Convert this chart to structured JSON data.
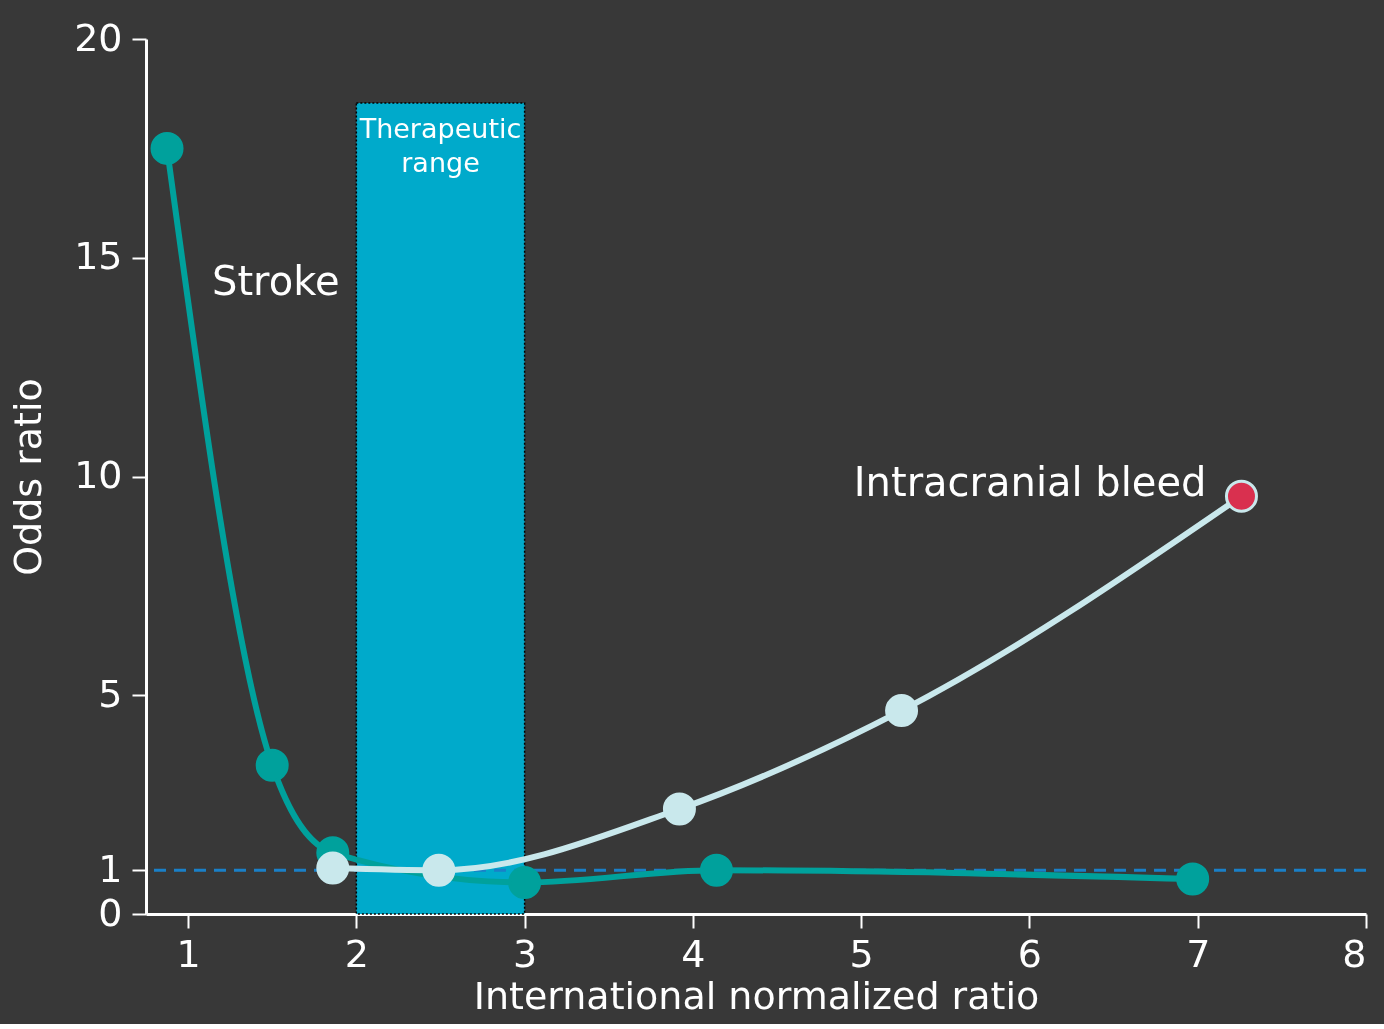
{
  "chart_data": {
    "type": "line",
    "xlabel": "International normalized ratio",
    "ylabel": "Odds ratio",
    "xlim": [
      0.75,
      8
    ],
    "xticks": [
      1,
      2,
      3,
      4,
      5,
      6,
      7,
      8
    ],
    "ylim": [
      0,
      20
    ],
    "yticks": [
      0,
      1,
      5,
      10,
      15,
      20
    ],
    "grid": false,
    "marker": "circle",
    "line_style": "solid",
    "series": [
      {
        "name": "Stroke",
        "color": "#00a19c",
        "x": [
          0.875,
          1.5,
          1.86,
          3.0,
          4.14,
          6.97
        ],
        "values": [
          17.5,
          3.4,
          1.4,
          0.72,
          1.0,
          0.8
        ]
      },
      {
        "name": "Intracranial bleed",
        "color": "#c9e8ec",
        "x": [
          1.86,
          2.49,
          3.92,
          5.24,
          7.26
        ],
        "values": [
          1.05,
          1.0,
          2.4,
          4.65,
          9.55
        ],
        "colors": [
          "#c9e8ec",
          "#c9e8ec",
          "#c9e8ec",
          "#c9e8ec",
          "#d9304f"
        ]
      }
    ],
    "bands": [
      {
        "axis": "x",
        "from": 2,
        "to": 3,
        "label": "Therapeutic\nrange",
        "color": "#00aacb"
      }
    ],
    "ref_lines": [
      {
        "axis": "y",
        "value": 1,
        "color": "#1a80c8",
        "line_style": "dashed"
      }
    ]
  }
}
